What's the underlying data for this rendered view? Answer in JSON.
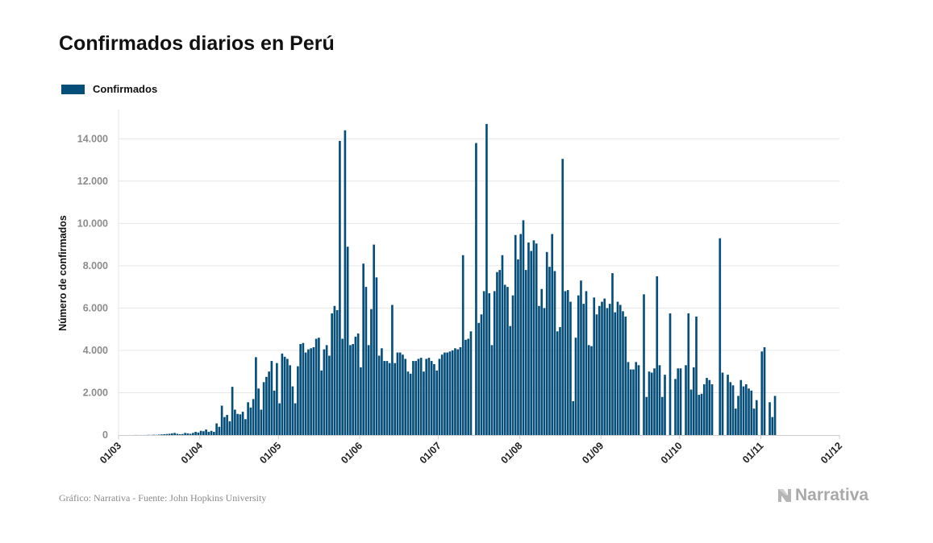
{
  "title": "Confirmados diarios en Perú",
  "legend": {
    "label": "Confirmados",
    "color": "#054e79"
  },
  "source": "Gráfico: Narrativa - Fuente: John Hopkins University",
  "brand": "Narrativa",
  "colors": {
    "bar": "#054e79",
    "grid": "#e6e6e6",
    "axis": "#cccccc",
    "tick_y": "#8c8c8c"
  },
  "chart_data": {
    "type": "bar",
    "title": "Confirmados diarios en Perú",
    "xlabel": "",
    "ylabel": "Número de confirmados",
    "ylim": [
      0,
      15000
    ],
    "yticks": [
      0,
      2000,
      4000,
      6000,
      8000,
      10000,
      12000,
      14000
    ],
    "ytick_labels": [
      "0",
      "2.000",
      "4.000",
      "6.000",
      "8.000",
      "10.000",
      "12.000",
      "14.000"
    ],
    "xticks": [
      "01/03",
      "01/04",
      "01/05",
      "01/06",
      "01/07",
      "01/08",
      "01/09",
      "01/10",
      "01/11",
      "01/12"
    ],
    "x_start": "2020-03-01",
    "x_end": "2020-12-01",
    "grid": true,
    "legend_position": "top-left",
    "series": [
      {
        "name": "Confirmados",
        "color": "#054e79",
        "dates_start": "2020-03-01",
        "values": [
          0,
          0,
          0,
          0,
          1,
          0,
          5,
          2,
          2,
          2,
          3,
          10,
          5,
          15,
          10,
          20,
          30,
          40,
          50,
          60,
          80,
          100,
          60,
          40,
          50,
          100,
          80,
          60,
          100,
          150,
          120,
          200,
          180,
          260,
          150,
          200,
          150,
          550,
          390,
          1390,
          850,
          950,
          650,
          2280,
          1200,
          1000,
          980,
          1100,
          750,
          1550,
          1300,
          1700,
          3680,
          2200,
          1200,
          2500,
          2750,
          3000,
          3500,
          2100,
          3400,
          1500,
          3850,
          3700,
          3600,
          3300,
          2300,
          1500,
          3250,
          4300,
          4350,
          3900,
          4050,
          4100,
          4150,
          4550,
          4600,
          3050,
          4050,
          4250,
          3750,
          5750,
          6100,
          5900,
          13900,
          4550,
          14400,
          8900,
          4250,
          4300,
          4650,
          4800,
          3200,
          8100,
          7000,
          4250,
          5950,
          9000,
          7450,
          3750,
          4100,
          3500,
          3500,
          3400,
          6150,
          3400,
          3900,
          3900,
          3800,
          3600,
          3000,
          2900,
          3500,
          3500,
          3600,
          3650,
          3000,
          3600,
          3650,
          3500,
          3350,
          3050,
          3600,
          3800,
          3900,
          3900,
          3950,
          4000,
          4100,
          4050,
          4150,
          8500,
          4500,
          4550,
          4900,
          0,
          13800,
          5300,
          5700,
          6800,
          14700,
          6700,
          4250,
          6800,
          7700,
          7800,
          8500,
          7100,
          7000,
          5150,
          6600,
          9450,
          8300,
          9500,
          10150,
          7800,
          9100,
          8700,
          9200,
          9050,
          6100,
          6900,
          6000,
          8650,
          7950,
          9500,
          7750,
          4900,
          5100,
          13050,
          6800,
          6850,
          6300,
          1600,
          4600,
          6600,
          7300,
          6200,
          6800,
          4250,
          4200,
          6500,
          5700,
          6100,
          6300,
          6450,
          6000,
          6200,
          7650,
          5800,
          6300,
          6150,
          5850,
          5600,
          3450,
          3100,
          3100,
          3450,
          3300,
          0,
          6650,
          1800,
          3000,
          2950,
          3150,
          7500,
          3300,
          1800,
          2850,
          0,
          5750,
          0,
          2650,
          3150,
          3150,
          0,
          3300,
          5750,
          2150,
          3200,
          5600,
          1900,
          1950,
          2400,
          2700,
          2600,
          2400,
          0,
          0,
          9300,
          2950,
          0,
          2850,
          2500,
          2350,
          1250,
          1850,
          2600,
          2300,
          2400,
          2200,
          2100,
          1250,
          1650,
          0,
          3950,
          4150,
          0,
          1550,
          850,
          1850
        ]
      }
    ]
  }
}
